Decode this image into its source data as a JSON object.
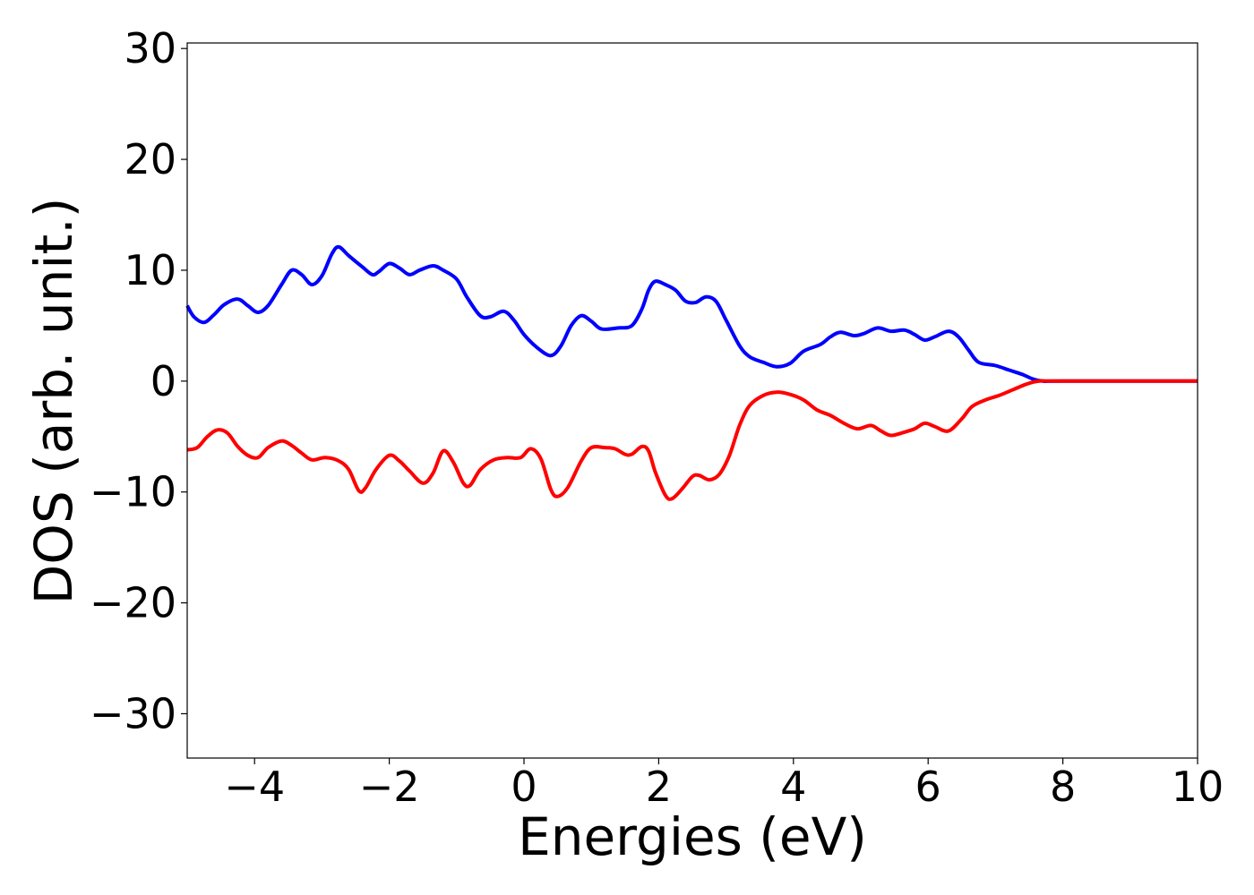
{
  "chart_data": {
    "type": "line",
    "title": "",
    "xlabel": "Energies (eV)",
    "ylabel": "DOS (arb. unit.)",
    "xlim": [
      -5,
      10
    ],
    "ylim": [
      -34,
      30.5
    ],
    "xticks": [
      -4,
      -2,
      0,
      2,
      4,
      6,
      8,
      10
    ],
    "yticks": [
      -30,
      -20,
      -10,
      0,
      10,
      20,
      30
    ],
    "xtick_labels": [
      "−4",
      "−2",
      "0",
      "2",
      "4",
      "6",
      "8",
      "10"
    ],
    "ytick_labels": [
      "−30",
      "−20",
      "−10",
      "0",
      "10",
      "20",
      "30"
    ],
    "grid": false,
    "legend": false,
    "series": [
      {
        "color": "#0000ff",
        "points": [
          [
            -5.0,
            6.8
          ],
          [
            -4.9,
            5.8
          ],
          [
            -4.75,
            5.3
          ],
          [
            -4.6,
            6.0
          ],
          [
            -4.45,
            6.9
          ],
          [
            -4.25,
            7.4
          ],
          [
            -4.1,
            6.8
          ],
          [
            -3.95,
            6.2
          ],
          [
            -3.8,
            6.8
          ],
          [
            -3.6,
            8.7
          ],
          [
            -3.45,
            10.0
          ],
          [
            -3.3,
            9.6
          ],
          [
            -3.15,
            8.7
          ],
          [
            -3.0,
            9.5
          ],
          [
            -2.85,
            11.5
          ],
          [
            -2.75,
            12.1
          ],
          [
            -2.6,
            11.3
          ],
          [
            -2.4,
            10.3
          ],
          [
            -2.25,
            9.6
          ],
          [
            -2.15,
            9.9
          ],
          [
            -2.0,
            10.6
          ],
          [
            -1.85,
            10.2
          ],
          [
            -1.7,
            9.6
          ],
          [
            -1.55,
            10.0
          ],
          [
            -1.35,
            10.4
          ],
          [
            -1.2,
            10.0
          ],
          [
            -1.0,
            9.2
          ],
          [
            -0.85,
            7.6
          ],
          [
            -0.65,
            5.9
          ],
          [
            -0.5,
            5.8
          ],
          [
            -0.3,
            6.3
          ],
          [
            -0.15,
            5.5
          ],
          [
            0.0,
            4.2
          ],
          [
            0.2,
            3.0
          ],
          [
            0.4,
            2.3
          ],
          [
            0.55,
            3.2
          ],
          [
            0.7,
            5.0
          ],
          [
            0.85,
            5.9
          ],
          [
            1.0,
            5.4
          ],
          [
            1.15,
            4.7
          ],
          [
            1.4,
            4.8
          ],
          [
            1.6,
            5.0
          ],
          [
            1.75,
            6.5
          ],
          [
            1.85,
            8.2
          ],
          [
            1.95,
            9.0
          ],
          [
            2.1,
            8.7
          ],
          [
            2.25,
            8.2
          ],
          [
            2.4,
            7.2
          ],
          [
            2.55,
            7.1
          ],
          [
            2.7,
            7.6
          ],
          [
            2.85,
            7.2
          ],
          [
            3.0,
            5.5
          ],
          [
            3.2,
            3.2
          ],
          [
            3.35,
            2.2
          ],
          [
            3.55,
            1.7
          ],
          [
            3.75,
            1.3
          ],
          [
            3.95,
            1.6
          ],
          [
            4.15,
            2.7
          ],
          [
            4.4,
            3.3
          ],
          [
            4.55,
            4.0
          ],
          [
            4.7,
            4.4
          ],
          [
            4.9,
            4.1
          ],
          [
            5.05,
            4.3
          ],
          [
            5.25,
            4.8
          ],
          [
            5.45,
            4.5
          ],
          [
            5.65,
            4.6
          ],
          [
            5.8,
            4.2
          ],
          [
            5.95,
            3.7
          ],
          [
            6.1,
            4.0
          ],
          [
            6.3,
            4.5
          ],
          [
            6.45,
            4.0
          ],
          [
            6.6,
            2.8
          ],
          [
            6.75,
            1.7
          ],
          [
            7.0,
            1.4
          ],
          [
            7.2,
            1.0
          ],
          [
            7.4,
            0.6
          ],
          [
            7.55,
            0.2
          ],
          [
            7.7,
            0.0
          ],
          [
            8.0,
            0.0
          ],
          [
            10.0,
            0.0
          ]
        ]
      },
      {
        "color": "#ff0000",
        "points": [
          [
            -5.0,
            -6.2
          ],
          [
            -4.85,
            -6.0
          ],
          [
            -4.7,
            -5.0
          ],
          [
            -4.55,
            -4.4
          ],
          [
            -4.4,
            -4.7
          ],
          [
            -4.25,
            -5.9
          ],
          [
            -4.1,
            -6.7
          ],
          [
            -3.95,
            -6.9
          ],
          [
            -3.8,
            -6.0
          ],
          [
            -3.6,
            -5.4
          ],
          [
            -3.45,
            -5.8
          ],
          [
            -3.3,
            -6.5
          ],
          [
            -3.15,
            -7.1
          ],
          [
            -2.95,
            -6.9
          ],
          [
            -2.75,
            -7.2
          ],
          [
            -2.6,
            -8.0
          ],
          [
            -2.45,
            -9.9
          ],
          [
            -2.35,
            -9.6
          ],
          [
            -2.2,
            -8.0
          ],
          [
            -2.0,
            -6.7
          ],
          [
            -1.85,
            -7.2
          ],
          [
            -1.7,
            -8.1
          ],
          [
            -1.5,
            -9.2
          ],
          [
            -1.35,
            -8.3
          ],
          [
            -1.2,
            -6.3
          ],
          [
            -1.05,
            -7.3
          ],
          [
            -0.9,
            -9.2
          ],
          [
            -0.8,
            -9.4
          ],
          [
            -0.65,
            -8.0
          ],
          [
            -0.45,
            -7.1
          ],
          [
            -0.25,
            -6.9
          ],
          [
            -0.05,
            -6.9
          ],
          [
            0.1,
            -6.1
          ],
          [
            0.25,
            -7.0
          ],
          [
            0.4,
            -9.8
          ],
          [
            0.5,
            -10.4
          ],
          [
            0.65,
            -9.6
          ],
          [
            0.85,
            -7.2
          ],
          [
            1.0,
            -6.0
          ],
          [
            1.2,
            -6.0
          ],
          [
            1.35,
            -6.1
          ],
          [
            1.5,
            -6.6
          ],
          [
            1.6,
            -6.6
          ],
          [
            1.75,
            -5.9
          ],
          [
            1.85,
            -6.3
          ],
          [
            1.95,
            -8.2
          ],
          [
            2.1,
            -10.3
          ],
          [
            2.2,
            -10.6
          ],
          [
            2.35,
            -9.7
          ],
          [
            2.5,
            -8.6
          ],
          [
            2.6,
            -8.5
          ],
          [
            2.75,
            -8.9
          ],
          [
            2.9,
            -8.4
          ],
          [
            3.05,
            -6.7
          ],
          [
            3.2,
            -4.0
          ],
          [
            3.35,
            -2.2
          ],
          [
            3.55,
            -1.3
          ],
          [
            3.75,
            -1.0
          ],
          [
            3.95,
            -1.2
          ],
          [
            4.15,
            -1.7
          ],
          [
            4.35,
            -2.6
          ],
          [
            4.55,
            -3.1
          ],
          [
            4.75,
            -3.8
          ],
          [
            4.95,
            -4.3
          ],
          [
            5.15,
            -4.0
          ],
          [
            5.3,
            -4.5
          ],
          [
            5.45,
            -4.9
          ],
          [
            5.65,
            -4.6
          ],
          [
            5.8,
            -4.3
          ],
          [
            5.95,
            -3.8
          ],
          [
            6.1,
            -4.1
          ],
          [
            6.3,
            -4.5
          ],
          [
            6.5,
            -3.4
          ],
          [
            6.65,
            -2.3
          ],
          [
            6.85,
            -1.7
          ],
          [
            7.05,
            -1.3
          ],
          [
            7.25,
            -0.8
          ],
          [
            7.45,
            -0.3
          ],
          [
            7.65,
            0.0
          ],
          [
            8.0,
            0.0
          ],
          [
            10.0,
            0.0
          ]
        ]
      }
    ]
  }
}
